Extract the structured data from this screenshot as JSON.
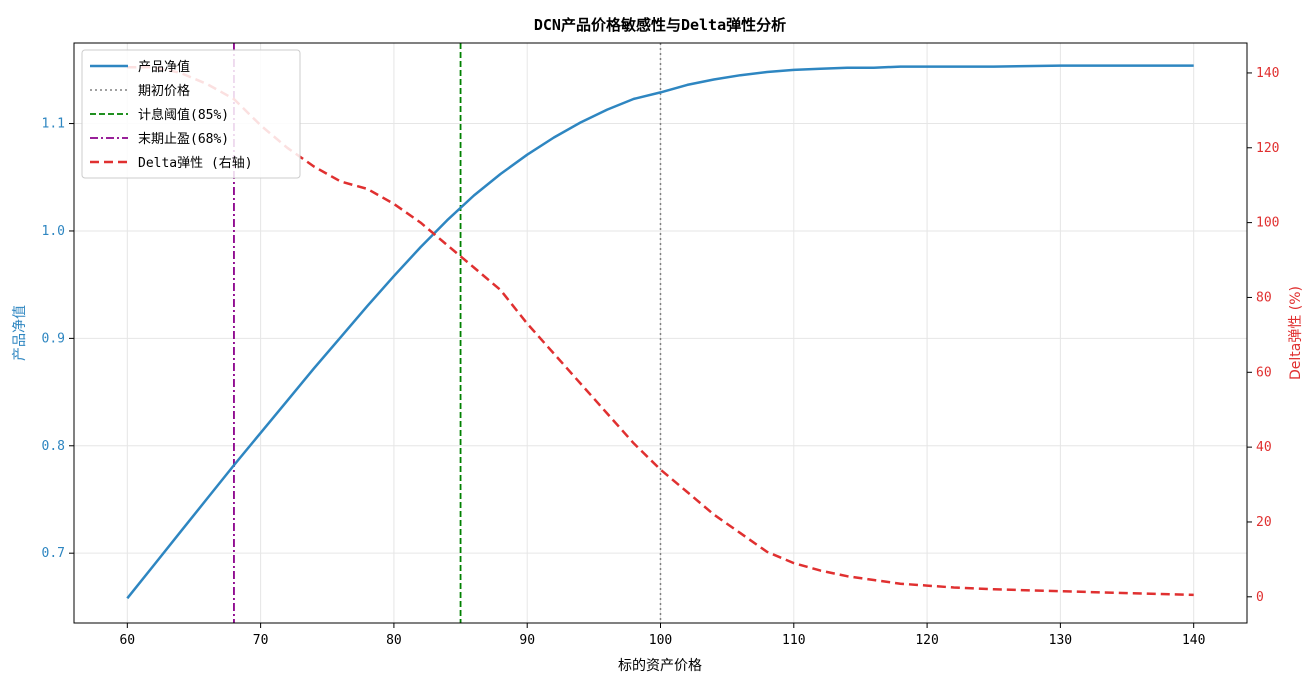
{
  "chart_data": {
    "type": "line",
    "title": "DCN产品价格敏感性与Delta弹性分析",
    "xlabel": "标的资产价格",
    "ylabel_left": "产品净值",
    "ylabel_right": "Delta弹性 (%)",
    "xlim": [
      56,
      144
    ],
    "ylim_left": [
      0.635,
      1.175
    ],
    "ylim_right": [
      -7,
      148
    ],
    "x_ticks": [
      60,
      70,
      80,
      90,
      100,
      110,
      120,
      130,
      140
    ],
    "y_left_ticks": [
      0.7,
      0.8,
      0.9,
      1.0,
      1.1
    ],
    "y_right_ticks": [
      0,
      20,
      40,
      60,
      80,
      100,
      120,
      140
    ],
    "grid": true,
    "legend_placement": "top-left",
    "colors": {
      "nav": "#2e86c1",
      "delta": "#e03030",
      "initial_price": "#808080",
      "coupon_barrier": "#008000",
      "knockout": "#8b008b",
      "left_axis": "#2e86c1",
      "right_axis": "#e03030"
    },
    "series": [
      {
        "name": "产品净值",
        "axis": "left",
        "style": "solid",
        "x": [
          60,
          62,
          64,
          66,
          68,
          70,
          72,
          74,
          76,
          78,
          80,
          82,
          84,
          86,
          88,
          90,
          92,
          94,
          96,
          98,
          100,
          102,
          104,
          106,
          108,
          110,
          112,
          114,
          116,
          118,
          120,
          125,
          130,
          135,
          140
        ],
        "y": [
          0.658,
          0.689,
          0.72,
          0.751,
          0.782,
          0.812,
          0.842,
          0.872,
          0.901,
          0.93,
          0.958,
          0.985,
          1.01,
          1.033,
          1.053,
          1.071,
          1.087,
          1.101,
          1.113,
          1.123,
          1.129,
          1.136,
          1.141,
          1.145,
          1.148,
          1.15,
          1.151,
          1.152,
          1.152,
          1.153,
          1.153,
          1.153,
          1.154,
          1.154,
          1.154
        ]
      },
      {
        "name": "Delta弹性 (右轴)",
        "axis": "right",
        "style": "dashed",
        "x": [
          60,
          62,
          64,
          66,
          68,
          70,
          72,
          74,
          76,
          78,
          80,
          82,
          84,
          86,
          88,
          90,
          92,
          94,
          96,
          98,
          100,
          102,
          104,
          106,
          108,
          110,
          112,
          114,
          116,
          118,
          120,
          122,
          125,
          130,
          135,
          140
        ],
        "y": [
          141.5,
          141.5,
          140,
          137,
          133,
          126,
          120,
          115,
          111,
          109,
          105,
          100,
          94,
          88,
          82,
          73,
          65,
          57,
          49,
          41,
          34,
          28,
          22,
          17,
          12,
          9,
          7,
          5.5,
          4.5,
          3.5,
          3,
          2.5,
          2,
          1.5,
          1,
          0.5
        ]
      }
    ],
    "reference_lines": [
      {
        "name": "期初价格",
        "x": 100,
        "style": "dotted"
      },
      {
        "name": "计息阈值(85%)",
        "x": 85,
        "style": "dashed"
      },
      {
        "name": "末期止盈(68%)",
        "x": 68,
        "style": "dashdot"
      }
    ],
    "legend": [
      "产品净值",
      "期初价格",
      "计息阈值(85%)",
      "末期止盈(68%)",
      "Delta弹性 (右轴)"
    ]
  }
}
